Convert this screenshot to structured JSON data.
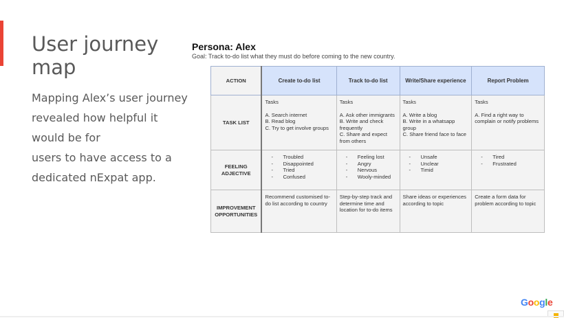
{
  "slide": {
    "title": "User journey map",
    "body": [
      "Mapping Alex’s user journey",
      "revealed how helpful it",
      "would be for",
      "users to have access to a",
      "dedicated nExpat app."
    ],
    "accent_color": "#ea4335"
  },
  "persona": {
    "title": "Persona: Alex",
    "goal": "Goal: Track to-do list what they must do before coming to the new country."
  },
  "table": {
    "header": [
      "ACTION",
      "Create to-do list",
      "Track to-do list",
      "Write/Share experience",
      "Report Problem"
    ],
    "rows": [
      {
        "label": "TASK LIST",
        "cells": [
          {
            "title": "Tasks",
            "items": [
              "A. Search internet",
              "B. Read blog",
              "C. Try to get involve groups"
            ]
          },
          {
            "title": "Tasks",
            "items": [
              "A. Ask other immigrants",
              "B. Write and check frequently",
              "C. Share and expect from others"
            ]
          },
          {
            "title": "Tasks",
            "items": [
              "A. Write a blog",
              "B. Write in a whatsapp group",
              "C. Share friend face to face"
            ]
          },
          {
            "title": "Tasks",
            "items": [
              "A. Find a right way to complain or notify problems"
            ]
          }
        ]
      },
      {
        "label": "FEELING ADJECTIVE",
        "cells": [
          {
            "items": [
              "Troubled",
              "Disappointed",
              "Tried",
              "Confused"
            ]
          },
          {
            "items": [
              "Feeling lost",
              "Angry",
              "Nervous",
              "Wooly-minded"
            ]
          },
          {
            "items": [
              "Unsafe",
              "Unclear",
              "Timid"
            ]
          },
          {
            "items": [
              "Tired",
              "Frustrated"
            ]
          }
        ]
      },
      {
        "label": "IMPROVEMENT OPPORTUNITIES",
        "cells": [
          "Recommend customised to-do list according to country",
          "Step-by-step track and determine time and location for to-do items",
          "Share ideas or experiences according to topic",
          "Create a form data for problem according to topic"
        ]
      }
    ]
  },
  "logo": {
    "text": "Google",
    "colors": [
      "#4285f4",
      "#ea4335",
      "#fbbc05",
      "#4285f4",
      "#34a853",
      "#ea4335"
    ]
  }
}
